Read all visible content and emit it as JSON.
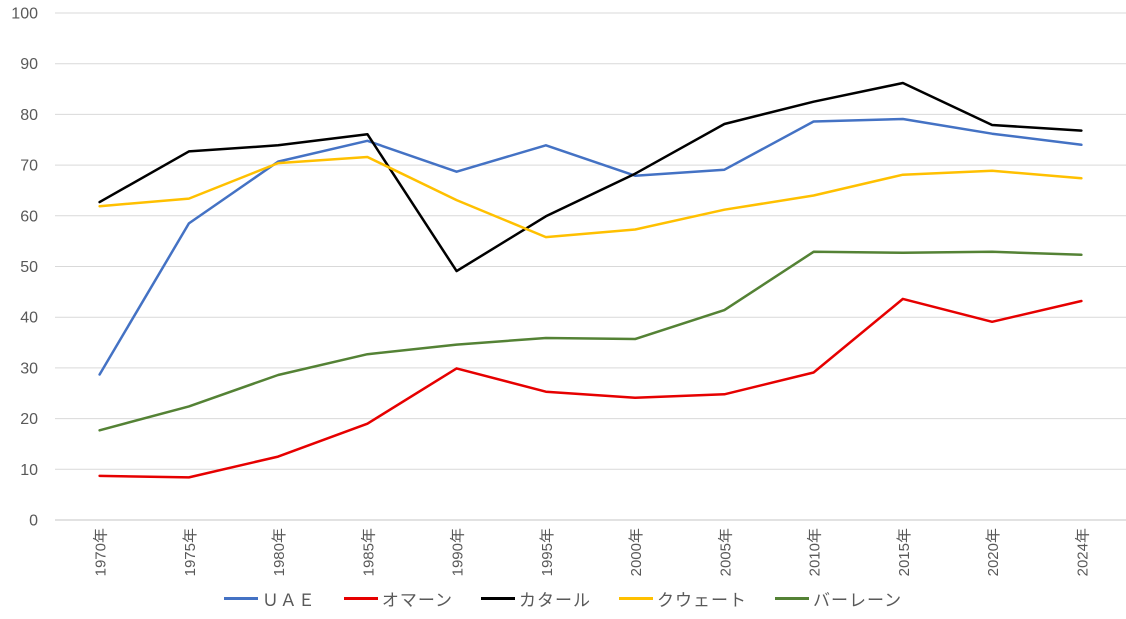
{
  "chart_data": {
    "type": "line",
    "title": "",
    "xlabel": "",
    "ylabel": "",
    "categories": [
      "1970年",
      "1975年",
      "1980年",
      "1985年",
      "1990年",
      "1995年",
      "2000年",
      "2005年",
      "2010年",
      "2015年",
      "2020年",
      "2024年"
    ],
    "series": [
      {
        "name": "ＵＡＥ",
        "slug": "uae",
        "color": "#4472C4",
        "values": [
          28.7,
          58.5,
          70.7,
          74.8,
          68.7,
          73.9,
          67.9,
          69.1,
          78.6,
          79.1,
          76.2,
          74.0
        ]
      },
      {
        "name": "オマーン",
        "slug": "oman",
        "color": "#E60000",
        "values": [
          8.7,
          8.4,
          12.5,
          19.0,
          29.9,
          25.3,
          24.1,
          24.8,
          29.1,
          43.6,
          39.1,
          43.2
        ]
      },
      {
        "name": "カタール",
        "slug": "qatar",
        "color": "#000000",
        "values": [
          62.7,
          72.7,
          73.9,
          76.1,
          49.1,
          59.9,
          68.3,
          78.1,
          82.5,
          86.2,
          77.9,
          76.8
        ]
      },
      {
        "name": "クウェート",
        "slug": "kuwait",
        "color": "#FFC000",
        "values": [
          61.9,
          63.4,
          70.4,
          71.6,
          63.1,
          55.8,
          57.3,
          61.2,
          64.0,
          68.1,
          68.9,
          67.4
        ]
      },
      {
        "name": "バーレーン",
        "slug": "bahrain",
        "color": "#548235",
        "values": [
          17.7,
          22.4,
          28.6,
          32.7,
          34.6,
          35.9,
          35.7,
          41.4,
          52.9,
          52.7,
          52.9,
          52.3
        ]
      }
    ],
    "ylim": [
      0,
      100
    ],
    "y_tick_labels": [
      "0",
      "10",
      "20",
      "30",
      "40",
      "50",
      "60",
      "70",
      "80",
      "90",
      "100"
    ],
    "grid": true,
    "legend_position": "bottom"
  },
  "styles": {
    "grid_color": "#D9D9D9",
    "axis_line_color": "#C6C6C6",
    "tick_label_color": "#595959",
    "background_color": "#FFFFFF"
  }
}
